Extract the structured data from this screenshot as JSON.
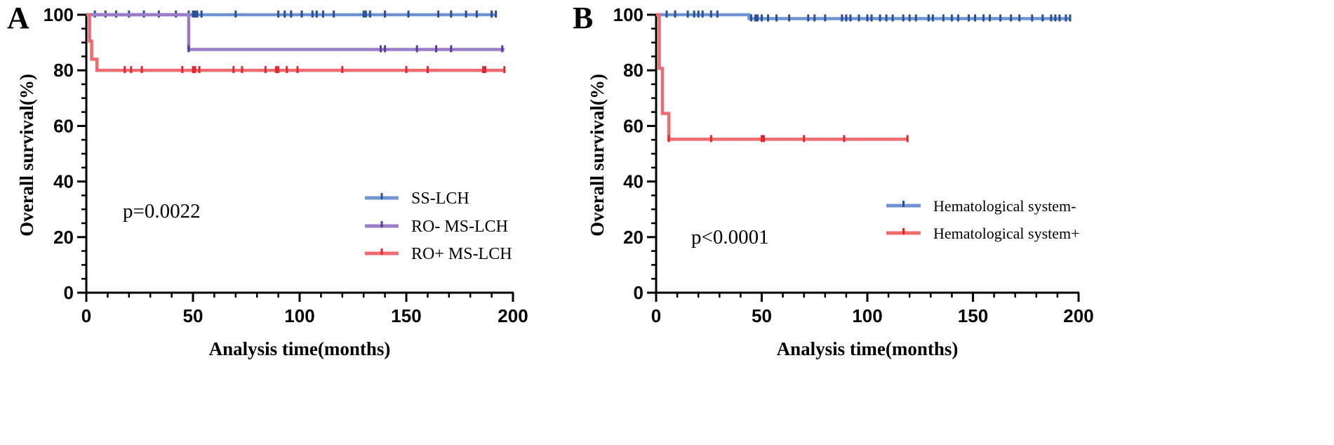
{
  "chart_data": [
    {
      "type": "line",
      "subtype": "kaplan-meier",
      "panel_label": "A",
      "xlabel": "Analysis time(months)",
      "ylabel": "Overall survival(%)",
      "xlim": [
        0,
        200
      ],
      "ylim": [
        0,
        100
      ],
      "xticks": [
        0,
        50,
        100,
        150,
        200
      ],
      "yticks": [
        0,
        20,
        40,
        60,
        80,
        100
      ],
      "annotation": "p=0.0022",
      "legend_position": "center-right",
      "series": [
        {
          "name": "SS-LCH",
          "color": "#6f94cf",
          "censor_color": "#2a4f95",
          "steps": [
            [
              0,
              100
            ],
            [
              192,
              100
            ]
          ],
          "censors": [
            4,
            9,
            14,
            20,
            27,
            34,
            42,
            48,
            50,
            51,
            52,
            54,
            70,
            90,
            93,
            96,
            101,
            106,
            108,
            111,
            116,
            130,
            131,
            133,
            140,
            151,
            165,
            171,
            178,
            183,
            190,
            192
          ]
        },
        {
          "name": "RO- MS-LCH",
          "color": "#9a7cc9",
          "censor_color": "#5a3a9a",
          "steps": [
            [
              0,
              100
            ],
            [
              48,
              100
            ],
            [
              48,
              87.5
            ],
            [
              196,
              87.5
            ]
          ],
          "censors": [
            48,
            138,
            140,
            155,
            164,
            171,
            195
          ]
        },
        {
          "name": "RO+ MS-LCH",
          "color": "#ef6b6f",
          "censor_color": "#e0262e",
          "steps": [
            [
              0,
              100
            ],
            [
              1.5,
              100
            ],
            [
              1.5,
              90.5
            ],
            [
              2.5,
              90.5
            ],
            [
              2.5,
              84
            ],
            [
              5,
              84
            ],
            [
              5,
              80
            ],
            [
              196,
              80
            ]
          ],
          "censors": [
            18,
            21,
            26,
            45,
            50,
            51,
            53,
            69,
            73,
            84,
            89,
            90,
            94,
            99,
            120,
            150,
            160,
            186,
            187,
            196
          ]
        }
      ]
    },
    {
      "type": "line",
      "subtype": "kaplan-meier",
      "panel_label": "B",
      "xlabel": "Analysis time(months)",
      "ylabel": "Overall survival(%)",
      "xlim": [
        0,
        200
      ],
      "ylim": [
        0,
        100
      ],
      "xticks": [
        0,
        50,
        100,
        150,
        200
      ],
      "yticks": [
        0,
        20,
        40,
        60,
        80,
        100
      ],
      "annotation": "p<0.0001",
      "legend_position": "center-right",
      "series": [
        {
          "name": "Hematological system-",
          "color": "#6f94cf",
          "censor_color": "#2a4f95",
          "steps": [
            [
              0,
              100
            ],
            [
              44,
              100
            ],
            [
              44,
              98.6
            ],
            [
              196,
              98.6
            ]
          ],
          "censors": [
            5,
            9,
            15,
            18,
            20,
            22,
            26,
            29,
            45,
            47,
            48,
            50,
            53,
            57,
            63,
            72,
            75,
            80,
            88,
            90,
            92,
            96,
            100,
            102,
            106,
            109,
            112,
            117,
            120,
            123,
            129,
            131,
            136,
            140,
            143,
            148,
            151,
            155,
            158,
            163,
            168,
            172,
            178,
            183,
            187,
            189,
            191,
            194,
            196
          ]
        },
        {
          "name": "Hematological system+",
          "color": "#ef6b6f",
          "censor_color": "#e0262e",
          "steps": [
            [
              0,
              100
            ],
            [
              1.5,
              100
            ],
            [
              1.5,
              80.7
            ],
            [
              3,
              80.7
            ],
            [
              3,
              64.5
            ],
            [
              6,
              64.5
            ],
            [
              6,
              55.2
            ],
            [
              119,
              55.2
            ]
          ],
          "censors": [
            6,
            26,
            50,
            51,
            70,
            89,
            119
          ]
        }
      ]
    }
  ]
}
